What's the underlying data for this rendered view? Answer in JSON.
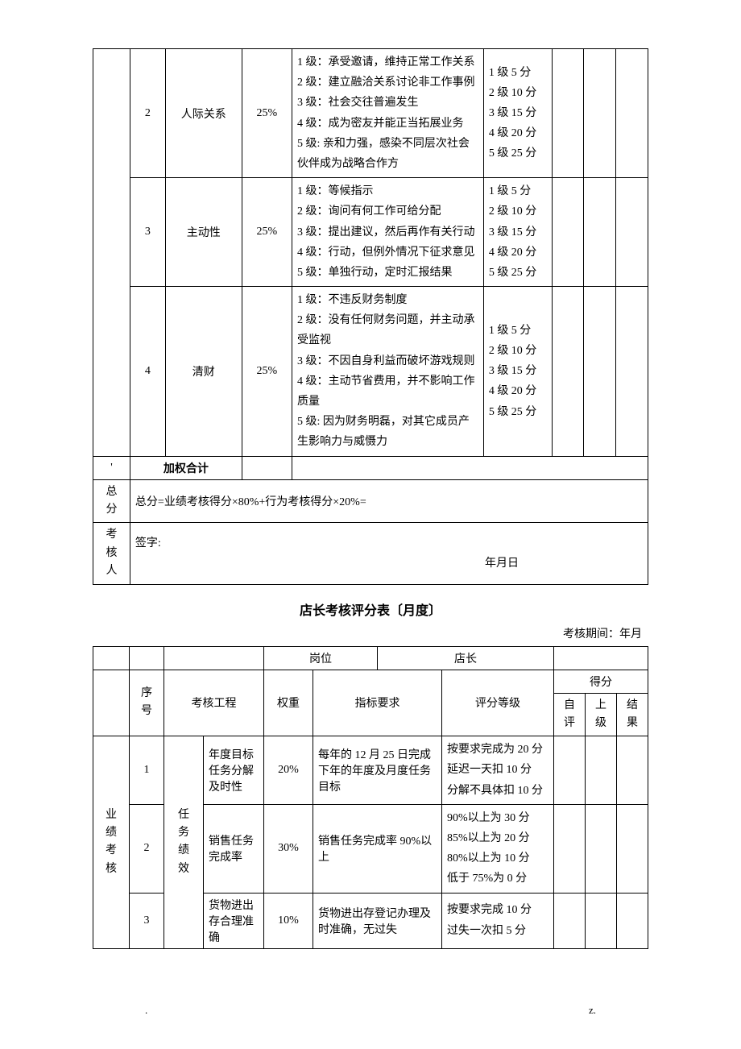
{
  "marks": {
    "dash": "-",
    "footer_left": ".",
    "footer_right": "z."
  },
  "table1": {
    "rows": [
      {
        "seq": "2",
        "item": "人际关系",
        "weight": "25%",
        "criteria": "1 级：承受邀请，维持正常工作关系\n2 级：建立融洽关系讨论非工作事例\n3 级：社会交往普遍发生\n4 级：成为密友并能正当拓展业务\n5 级: 亲和力强，感染不同层次社会伙伴成为战略合作方",
        "score": "1 级 5 分\n2 级 10 分\n3 级 15 分\n4 级 20 分\n5 级 25 分"
      },
      {
        "seq": "3",
        "item": "主动性",
        "weight": "25%",
        "criteria": "1 级：等候指示\n2 级：询问有何工作可给分配\n3 级：提出建议，然后再作有关行动\n4 级：行动，但例外情况下征求意见\n5 级：单独行动，定时汇报结果",
        "score": "1 级 5 分\n2 级 10 分\n3 级 15 分\n4 级 20 分\n5 级 25 分"
      },
      {
        "seq": "4",
        "item": "清财",
        "weight": "25%",
        "criteria": "1 级：不违反财务制度\n2 级：没有任何财务问题，并主动承受监视\n3 级：不因自身利益而破坏游戏规则\n4 级：主动节省费用，并不影响工作质量\n5 级: 因为财务明磊，对其它成员产生影响力与威慑力",
        "score": "1 级 5 分\n2 级 10 分\n3 级 15 分\n4 级 20 分\n5 级 25 分"
      }
    ],
    "quote_mark": "'",
    "weighted_total": "加权合计",
    "total_label": "总分",
    "total_formula": "总分=业绩考核得分×80%+行为考核得分×20%=",
    "reviewer_label": "考核人",
    "sign_label": "签字:",
    "date_label": "年月日"
  },
  "table2": {
    "title": "店长考核评分表〔月度〕",
    "period_label": "考核期间：年月",
    "headers": {
      "position_label": "岗位",
      "position_value": "店长",
      "seq": "序号",
      "project": "考核工程",
      "weight": "权重",
      "indicator": "指标要求",
      "grade": "评分等级",
      "score": "得分",
      "self": "自评",
      "superior": "上级",
      "result": "结果"
    },
    "side_label": "业绩考核",
    "group_label": "任务绩效",
    "rows": [
      {
        "seq": "1",
        "sub": "年度目标任务分解及时性",
        "weight": "20%",
        "indicator": "每年的 12 月 25 日完成下年的年度及月度任务目标",
        "grade": "按要求完成为 20 分\n延迟一天扣 10 分\n分解不具体扣 10 分"
      },
      {
        "seq": "2",
        "sub": "销售任务完成率",
        "weight": "30%",
        "indicator": "销售任务完成率 90%以上",
        "grade": "90%以上为 30 分\n85%以上为 20 分\n80%以上为 10 分\n低于 75%为 0 分"
      },
      {
        "seq": "3",
        "sub": "货物进出存合理准确",
        "weight": "10%",
        "indicator": "货物进出存登记办理及时准确，无过失",
        "grade": "按要求完成 10 分\n过失一次扣 5 分"
      }
    ]
  }
}
